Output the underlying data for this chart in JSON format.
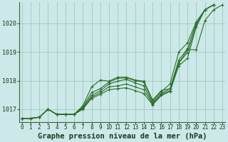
{
  "title": "Graphe pression niveau de la mer (hPa)",
  "bg_color": "#cce8e8",
  "grid_color": "#99ccbb",
  "line_color": "#2d6e2d",
  "x_ticks": [
    0,
    1,
    2,
    3,
    4,
    5,
    6,
    7,
    8,
    9,
    10,
    11,
    12,
    13,
    14,
    15,
    16,
    17,
    18,
    19,
    20,
    21,
    22,
    23
  ],
  "y_ticks": [
    1017,
    1018,
    1019,
    1020
  ],
  "ylim": [
    1016.55,
    1020.75
  ],
  "xlim": [
    -0.3,
    23.3
  ],
  "lines": [
    [
      1016.68,
      1016.68,
      1016.72,
      1017.0,
      1016.82,
      1016.82,
      1016.82,
      1017.12,
      1017.78,
      1018.02,
      1017.98,
      1018.12,
      1018.12,
      1018.02,
      1017.98,
      1017.32,
      1017.65,
      1017.72,
      1018.62,
      1019.08,
      1019.08,
      1020.1,
      1020.48,
      1020.65
    ],
    [
      1016.68,
      1016.68,
      1016.72,
      1017.0,
      1016.82,
      1016.82,
      1016.82,
      1017.08,
      1017.58,
      1017.72,
      1017.95,
      1018.08,
      1018.1,
      1018.0,
      1017.95,
      1017.28,
      1017.62,
      1017.88,
      1019.0,
      1019.32,
      1020.05,
      1020.48,
      1020.65
    ],
    [
      1016.68,
      1016.68,
      1016.72,
      1017.0,
      1016.82,
      1016.82,
      1016.82,
      1017.05,
      1017.48,
      1017.65,
      1017.88,
      1017.98,
      1018.05,
      1017.92,
      1017.82,
      1017.22,
      1017.55,
      1017.72,
      1018.72,
      1019.12,
      1020.0,
      1020.48,
      1020.65
    ],
    [
      1016.68,
      1016.68,
      1016.72,
      1017.0,
      1016.82,
      1016.82,
      1016.82,
      1017.02,
      1017.42,
      1017.58,
      1017.78,
      1017.82,
      1017.88,
      1017.78,
      1017.68,
      1017.18,
      1017.52,
      1017.65,
      1018.62,
      1018.98,
      1019.92,
      1020.48,
      1020.65
    ],
    [
      1016.68,
      1016.68,
      1016.72,
      1017.0,
      1016.82,
      1016.82,
      1016.82,
      1017.0,
      1017.38,
      1017.52,
      1017.68,
      1017.72,
      1017.75,
      1017.65,
      1017.55,
      1017.15,
      1017.48,
      1017.62,
      1018.52,
      1018.78,
      1019.88,
      1020.48,
      1020.65
    ]
  ],
  "marker": "+",
  "markersize": 3.5,
  "linewidth": 0.8,
  "title_fontsize": 7.5,
  "tick_fontsize": 5.5,
  "ylabel_fontsize": 6
}
